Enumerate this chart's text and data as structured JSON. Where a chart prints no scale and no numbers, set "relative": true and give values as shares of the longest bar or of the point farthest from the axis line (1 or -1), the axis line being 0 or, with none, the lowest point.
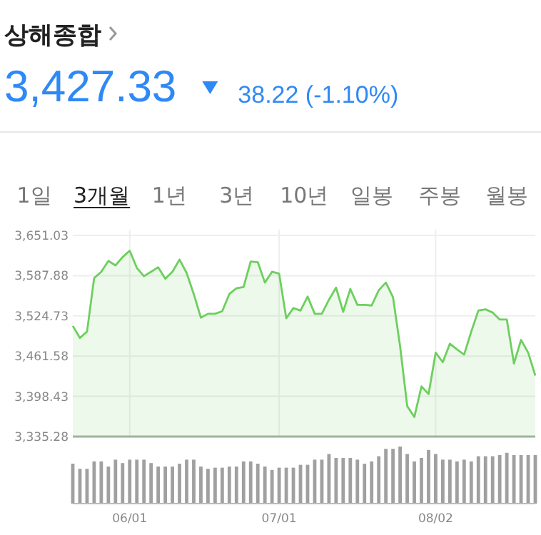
{
  "chart_data": [
    {
      "type": "area",
      "title": "상해종합",
      "subtitle": "3,427.33",
      "annotations": [
        "38.22 (-1.10%)",
        "1일",
        "3개월",
        "1년",
        "3년",
        "10년",
        "일봉",
        "주봉",
        "월봉"
      ],
      "categories": [
        null,
        null,
        null,
        null,
        null,
        null,
        null,
        null,
        null,
        null,
        null,
        null,
        null,
        null,
        null,
        null,
        null,
        null,
        null,
        null,
        null,
        null,
        null,
        null,
        null,
        null,
        null,
        null,
        null,
        null,
        null,
        null,
        null,
        null,
        null,
        null,
        null,
        null,
        null,
        null,
        null,
        null,
        null,
        null,
        null,
        null,
        null,
        null,
        null,
        null,
        null,
        null,
        null,
        null,
        null,
        null,
        null,
        null,
        null,
        null,
        null,
        null,
        null,
        null,
        null,
        null
      ],
      "values": [
        3509,
        3490,
        3500,
        3584,
        3594,
        3611,
        3604,
        3617,
        3627,
        3600,
        3587,
        3594,
        3601,
        3583,
        3594,
        3613,
        3592,
        3559,
        3522,
        3528,
        3528,
        3532,
        3559,
        3568,
        3570,
        3610,
        3609,
        3577,
        3594,
        3591,
        3521,
        3537,
        3533,
        3555,
        3528,
        3528,
        3550,
        3569,
        3531,
        3567,
        3542,
        3542,
        3541,
        3565,
        3577,
        3554,
        3477,
        3383,
        3366,
        3414,
        3402,
        3467,
        3452,
        3481,
        3472,
        3464,
        3500,
        3533,
        3535,
        3530,
        3519,
        3519,
        3450,
        3487,
        3467,
        3431
      ],
      "color": "#6dcf5e",
      "ylim": [
        3335.28,
        3651.03
      ],
      "yticks": [
        {
          "value": 3335.28,
          "label": "3,335.28"
        },
        {
          "value": 3398.43,
          "label": "3,398.43"
        },
        {
          "value": 3461.58,
          "label": "3,461.58"
        },
        {
          "value": 3524.73,
          "label": "3,524.73"
        },
        {
          "value": 3587.88,
          "label": "3,587.88"
        },
        {
          "value": 3651.03,
          "label": "3,651.03"
        }
      ],
      "grid": true,
      "tick_labels": "y"
    },
    {
      "type": "bar",
      "relative": true,
      "tick_labels": "x",
      "color": "#a0a0a0",
      "categories": [
        null,
        null,
        null,
        null,
        null,
        null,
        null,
        null,
        "06/01",
        null,
        null,
        null,
        null,
        null,
        null,
        null,
        null,
        null,
        null,
        null,
        null,
        null,
        null,
        null,
        null,
        null,
        null,
        null,
        null,
        "07/01",
        null,
        null,
        null,
        null,
        null,
        null,
        null,
        null,
        null,
        null,
        null,
        null,
        null,
        null,
        null,
        null,
        null,
        null,
        null,
        null,
        null,
        "08/02",
        null,
        null,
        null,
        null,
        null,
        null,
        null,
        null,
        null,
        null,
        null,
        null,
        null,
        null
      ],
      "values": [
        0.7,
        0.61,
        0.61,
        0.74,
        0.74,
        0.65,
        0.77,
        0.71,
        0.77,
        0.77,
        0.77,
        0.71,
        0.65,
        0.65,
        0.65,
        0.7,
        0.77,
        0.77,
        0.65,
        0.61,
        0.63,
        0.63,
        0.65,
        0.65,
        0.74,
        0.74,
        0.7,
        0.65,
        0.59,
        0.63,
        0.63,
        0.63,
        0.68,
        0.68,
        0.77,
        0.77,
        0.87,
        0.8,
        0.8,
        0.8,
        0.77,
        0.7,
        0.74,
        0.83,
        0.96,
        0.96,
        1,
        0.87,
        0.74,
        0.8,
        0.94,
        0.87,
        0.77,
        0.77,
        0.74,
        0.77,
        0.74,
        0.83,
        0.83,
        0.83,
        0.85,
        0.89,
        0.85,
        0.85,
        0.85,
        0.85
      ]
    }
  ]
}
